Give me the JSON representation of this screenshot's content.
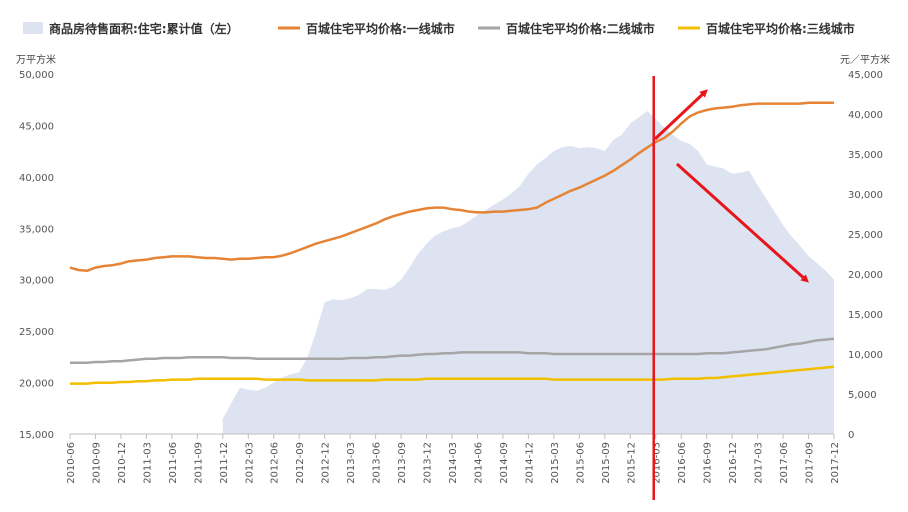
{
  "chart_data": {
    "type": "line",
    "legend": {
      "position": "top",
      "entries": [
        {
          "label": "商品房待售面积:住宅:累计值（左）",
          "color": "#dde3f1",
          "kind": "area"
        },
        {
          "label": "百城住宅平均价格:一线城市",
          "color": "#e58336",
          "kind": "line"
        },
        {
          "label": "百城住宅平均价格:二线城市",
          "color": "#a5a5a5",
          "kind": "line"
        },
        {
          "label": "百城住宅平均价格:三线城市",
          "color": "#f2bf00",
          "kind": "line"
        }
      ]
    },
    "left_axis": {
      "unit_label": "万平方米",
      "min": 15000,
      "max": 50000,
      "step": 5000
    },
    "right_axis": {
      "unit_label": "元／平方米",
      "min": 0,
      "max": 45000,
      "step": 5000
    },
    "x_tick_labels": [
      "2010-06",
      "2010-09",
      "2010-12",
      "2011-03",
      "2011-06",
      "2011-09",
      "2011-12",
      "2012-03",
      "2012-06",
      "2012-09",
      "2012-12",
      "2013-03",
      "2013-06",
      "2013-09",
      "2013-12",
      "2014-03",
      "2014-06",
      "2014-09",
      "2014-12",
      "2015-03",
      "2015-06",
      "2015-09",
      "2015-12",
      "2016-03",
      "2016-06",
      "2016-09",
      "2016-12",
      "2017-03",
      "2017-06",
      "2017-09",
      "2017-12"
    ],
    "series": [
      {
        "name": "商品房待售面积:住宅:累计值（左）",
        "axis": "left",
        "start_index": 18,
        "values": [
          16500,
          18000,
          19500,
          19300,
          19200,
          19500,
          20000,
          20500,
          20800,
          21000,
          22500,
          25000,
          27800,
          28100,
          28000,
          28200,
          28500,
          29100,
          29100,
          29000,
          29300,
          30000,
          31200,
          32500,
          33500,
          34300,
          34700,
          35000,
          35200,
          35700,
          36300,
          36800,
          37300,
          37800,
          38400,
          39100,
          40300,
          41200,
          41800,
          42500,
          42900,
          43000,
          42800,
          42900,
          42800,
          42500,
          43600,
          44100,
          45200,
          45800,
          46400,
          45600,
          44800,
          44100,
          43500,
          43200,
          42500,
          41200,
          41000,
          40800,
          40300,
          40400,
          40600,
          39200,
          37900,
          36600,
          35300,
          34200,
          33300,
          32300,
          31600,
          30900,
          30000
        ]
      },
      {
        "name": "百城住宅平均价格:一线城市",
        "axis": "right",
        "start_index": 0,
        "values": [
          20800,
          20500,
          20400,
          20800,
          21000,
          21100,
          21300,
          21600,
          21700,
          21800,
          22000,
          22100,
          22200,
          22200,
          22200,
          22100,
          22000,
          22000,
          21900,
          21800,
          21900,
          21900,
          22000,
          22100,
          22100,
          22300,
          22600,
          23000,
          23400,
          23800,
          24100,
          24400,
          24700,
          25100,
          25500,
          25900,
          26300,
          26800,
          27200,
          27500,
          27800,
          28000,
          28200,
          28300,
          28300,
          28100,
          28000,
          27800,
          27700,
          27700,
          27800,
          27800,
          27900,
          28000,
          28100,
          28300,
          28900,
          29400,
          29900,
          30400,
          30800,
          31300,
          31800,
          32300,
          32900,
          33600,
          34300,
          35100,
          35800,
          36500,
          37000,
          37800,
          38800,
          39700,
          40200,
          40500,
          40700,
          40800,
          40900,
          41100,
          41200,
          41300,
          41300,
          41300,
          41300,
          41300,
          41300,
          41400,
          41400,
          41400,
          41400
        ]
      },
      {
        "name": "百城住宅平均价格:二线城市",
        "axis": "right",
        "start_index": 0,
        "values": [
          8900,
          8900,
          8900,
          9000,
          9000,
          9100,
          9100,
          9200,
          9300,
          9400,
          9400,
          9500,
          9500,
          9500,
          9600,
          9600,
          9600,
          9600,
          9600,
          9500,
          9500,
          9500,
          9400,
          9400,
          9400,
          9400,
          9400,
          9400,
          9400,
          9400,
          9400,
          9400,
          9400,
          9500,
          9500,
          9500,
          9600,
          9600,
          9700,
          9800,
          9800,
          9900,
          10000,
          10000,
          10100,
          10100,
          10200,
          10200,
          10200,
          10200,
          10200,
          10200,
          10200,
          10200,
          10100,
          10100,
          10100,
          10000,
          10000,
          10000,
          10000,
          10000,
          10000,
          10000,
          10000,
          10000,
          10000,
          10000,
          10000,
          10000,
          10000,
          10000,
          10000,
          10000,
          10000,
          10100,
          10100,
          10100,
          10200,
          10300,
          10400,
          10500,
          10600,
          10800,
          11000,
          11200,
          11300,
          11500,
          11700,
          11800,
          11900
        ]
      },
      {
        "name": "百城住宅平均价格:三线城市",
        "axis": "right",
        "start_index": 0,
        "values": [
          6300,
          6300,
          6300,
          6400,
          6400,
          6400,
          6500,
          6500,
          6600,
          6600,
          6700,
          6700,
          6800,
          6800,
          6800,
          6900,
          6900,
          6900,
          6900,
          6900,
          6900,
          6900,
          6900,
          6800,
          6800,
          6800,
          6800,
          6800,
          6700,
          6700,
          6700,
          6700,
          6700,
          6700,
          6700,
          6700,
          6700,
          6800,
          6800,
          6800,
          6800,
          6800,
          6900,
          6900,
          6900,
          6900,
          6900,
          6900,
          6900,
          6900,
          6900,
          6900,
          6900,
          6900,
          6900,
          6900,
          6900,
          6800,
          6800,
          6800,
          6800,
          6800,
          6800,
          6800,
          6800,
          6800,
          6800,
          6800,
          6800,
          6800,
          6800,
          6900,
          6900,
          6900,
          6900,
          7000,
          7000,
          7100,
          7200,
          7300,
          7400,
          7500,
          7600,
          7700,
          7800,
          7900,
          8000,
          8100,
          8200,
          8300,
          8400
        ]
      }
    ],
    "annotations": {
      "vertical_line": {
        "x_label": "2016-03",
        "color": "#e8151b"
      },
      "arrows": [
        {
          "direction": "up",
          "color": "#e8151b"
        },
        {
          "direction": "down",
          "color": "#e8151b"
        }
      ]
    }
  }
}
